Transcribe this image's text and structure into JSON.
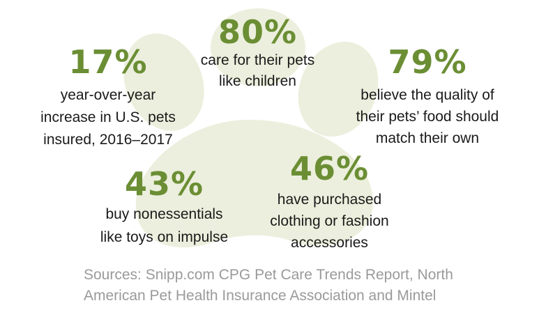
{
  "colors": {
    "accent_green": "#6b8e34",
    "paw_fill": "#ecefdd",
    "text_dark": "#1a1a1a",
    "source_gray": "#9a9a9a"
  },
  "stats": {
    "s80": {
      "percent": "80%",
      "lines": [
        "care for their pets",
        "like children"
      ]
    },
    "s17": {
      "percent": "17%",
      "lines": [
        "year-over-year",
        "increase in U.S. pets",
        "insured, 2016–2017"
      ]
    },
    "s79": {
      "percent": "79%",
      "lines": [
        "believe the quality of",
        "their pets’ food should",
        "match their own"
      ]
    },
    "s43": {
      "percent": "43%",
      "lines": [
        "buy nonessentials",
        "like toys on impulse"
      ]
    },
    "s46": {
      "percent": "46%",
      "lines": [
        "have purchased",
        "clothing or fashion",
        "accessories"
      ]
    }
  },
  "sources": {
    "lines": [
      "Sources: Snipp.com CPG Pet Care Trends Report, North",
      "American Pet Health Insurance Association and Mintel"
    ]
  }
}
